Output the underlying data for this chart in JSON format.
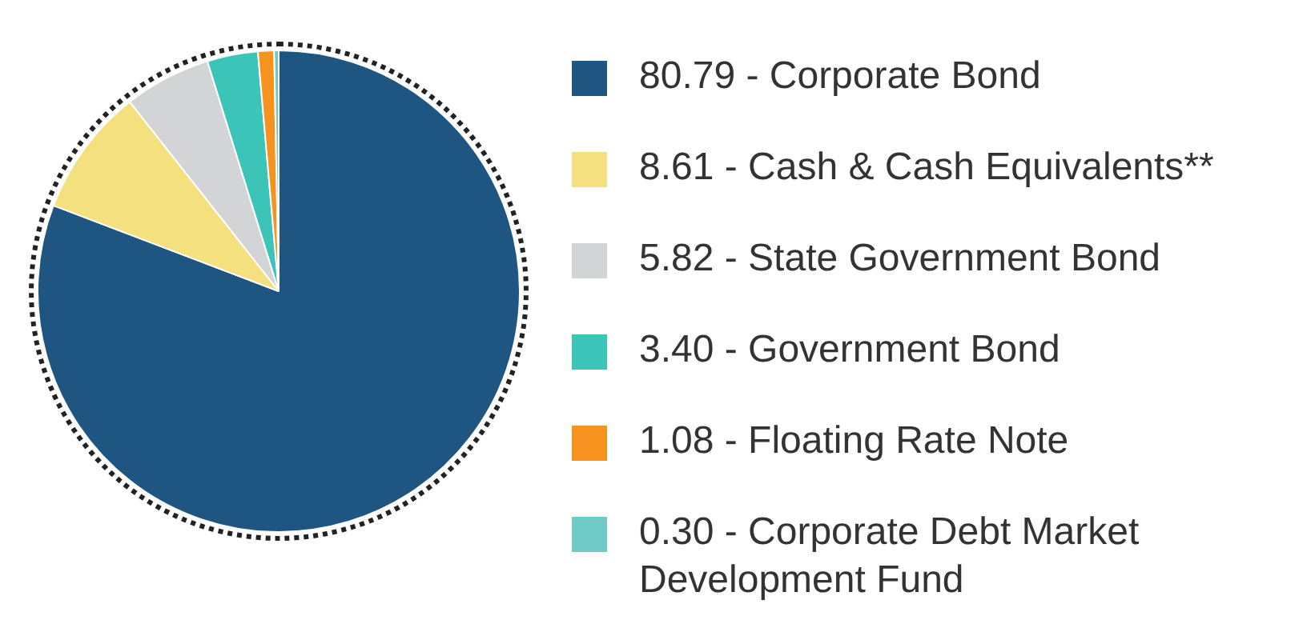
{
  "chart_data": {
    "type": "pie",
    "categories": [
      "Corporate Bond",
      "Cash & Cash Equivalents**",
      "State Government Bond",
      "Government Bond",
      "Floating Rate Note",
      "Corporate Debt Market Development Fund"
    ],
    "values": [
      80.79,
      8.61,
      5.82,
      3.4,
      1.08,
      0.3
    ],
    "value_labels": [
      "80.79",
      "8.61",
      "5.82",
      "3.40",
      "1.08",
      "0.30"
    ],
    "colors": [
      "#1f5581",
      "#f4e07f",
      "#d3d4d6",
      "#3dc4b8",
      "#f6921e",
      "#6fcac6"
    ],
    "legend": "right"
  }
}
